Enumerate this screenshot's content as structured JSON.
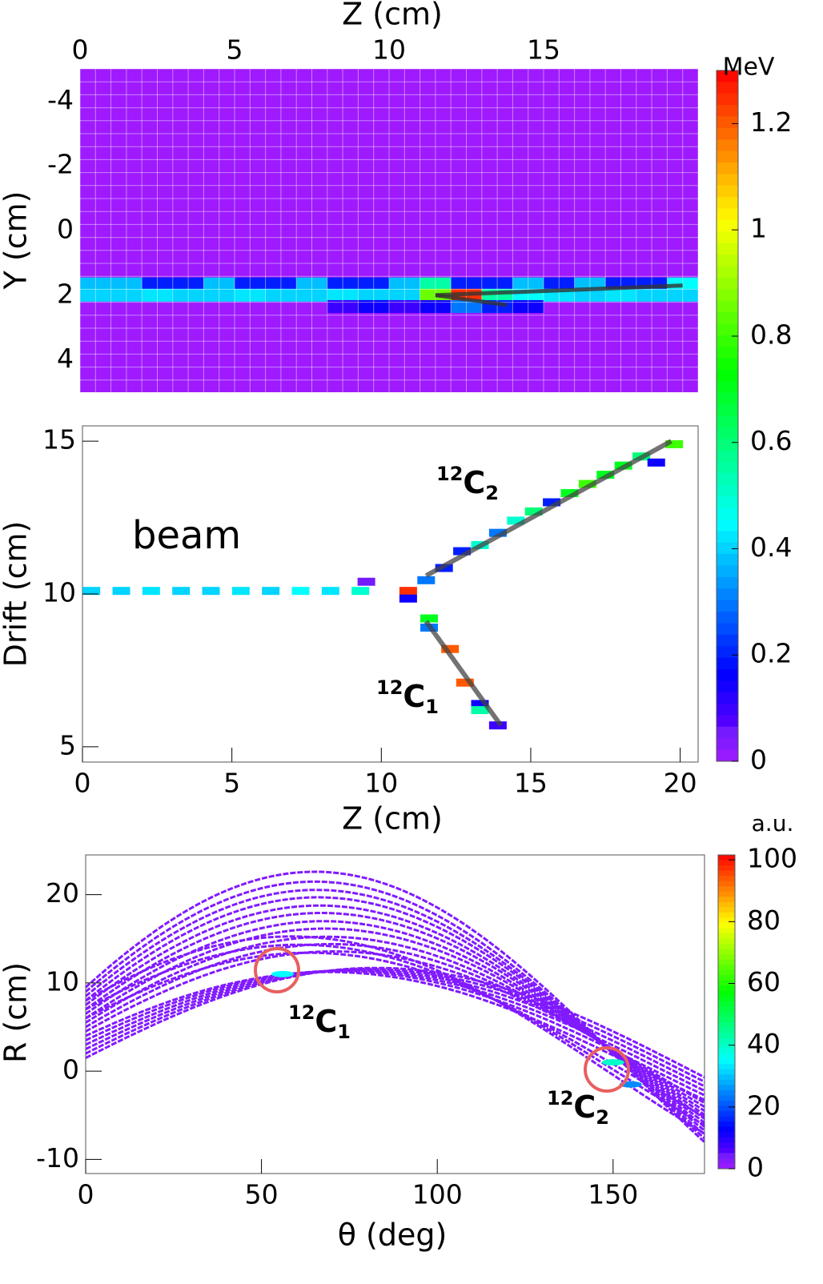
{
  "chart_data": [
    {
      "type": "heatmap",
      "x_label": "Z (cm)",
      "y_label": "Y (cm)",
      "xlim": [
        0,
        20
      ],
      "ylim": [
        -5,
        5
      ],
      "xticks": [
        0,
        5,
        10,
        15
      ],
      "yticks": [
        -4,
        -2,
        0,
        2,
        4
      ],
      "hit_rows": [
        {
          "y": 1.65,
          "z": [
            0,
            1,
            2,
            3,
            4,
            5,
            6,
            7,
            8,
            9,
            10,
            11,
            12,
            13,
            14,
            15,
            16,
            17,
            18,
            19
          ],
          "values": [
            0.38,
            0.38,
            0.2,
            0.2,
            0.38,
            0.2,
            0.2,
            0.38,
            0.2,
            0.2,
            0.38,
            0.55,
            0.2,
            0.2,
            0.38,
            0.2,
            0.38,
            0.2,
            0.2,
            0.45
          ]
        },
        {
          "y": 2.0,
          "z": [
            0,
            1,
            2,
            3,
            4,
            5,
            6,
            7,
            8,
            9,
            10,
            11,
            12,
            13,
            14,
            15,
            16,
            17,
            18,
            19
          ],
          "values": [
            0.4,
            0.4,
            0.42,
            0.4,
            0.4,
            0.42,
            0.4,
            0.4,
            0.42,
            0.4,
            0.4,
            0.85,
            1.25,
            0.55,
            0.45,
            0.42,
            0.4,
            0.42,
            0.4,
            0.4
          ]
        },
        {
          "y": 2.35,
          "z": [
            8,
            9,
            10,
            11,
            12,
            13,
            14
          ],
          "values": [
            0.1,
            0.15,
            0.1,
            0.15,
            0.3,
            0.2,
            0.15
          ]
        }
      ],
      "fit_lines": [
        {
          "z": [
            11.5,
            19.5
          ],
          "y": [
            2.0,
            1.7
          ]
        },
        {
          "z": [
            11.5,
            13.8
          ],
          "y": [
            2.0,
            2.3
          ]
        }
      ]
    },
    {
      "type": "scatter",
      "x_label": "Z (cm)",
      "y_label": "Drift (cm)",
      "xlim": [
        0,
        20.6
      ],
      "ylim": [
        4.5,
        15.5
      ],
      "xticks": [
        0,
        5,
        10,
        15,
        20
      ],
      "yticks": [
        5,
        10,
        15
      ],
      "annotations": [
        {
          "text": "beam"
        },
        {
          "mass": "12",
          "symbol": "C",
          "index": "2"
        },
        {
          "mass": "12",
          "symbol": "C",
          "index": "1"
        }
      ],
      "hits": {
        "z": [
          0.3,
          1.3,
          2.3,
          3.3,
          4.3,
          5.3,
          6.3,
          7.3,
          8.3,
          9.3,
          9.5,
          10.9,
          10.9,
          11.5,
          12.1,
          12.7,
          13.3,
          13.9,
          14.5,
          15.1,
          15.7,
          16.3,
          16.9,
          17.5,
          18.1,
          18.7,
          19.2,
          19.8,
          11.6,
          11.6,
          12.3,
          12.8,
          13.3,
          13.3,
          13.9
        ],
        "drift": [
          10.1,
          10.1,
          10.1,
          10.1,
          10.1,
          10.1,
          10.1,
          10.1,
          10.1,
          10.1,
          10.4,
          10.1,
          9.85,
          10.45,
          10.85,
          11.4,
          11.6,
          12.0,
          12.4,
          12.7,
          13.0,
          13.3,
          13.6,
          13.9,
          14.2,
          14.5,
          14.3,
          14.9,
          9.2,
          8.9,
          8.2,
          7.1,
          6.4,
          6.2,
          5.7
        ],
        "values": [
          0.4,
          0.4,
          0.42,
          0.4,
          0.4,
          0.42,
          0.4,
          0.45,
          0.42,
          0.5,
          0.05,
          1.25,
          0.15,
          0.3,
          0.2,
          0.2,
          0.5,
          0.3,
          0.5,
          0.6,
          0.2,
          0.7,
          0.8,
          0.7,
          0.7,
          0.6,
          0.15,
          0.8,
          0.7,
          0.3,
          1.2,
          1.2,
          0.15,
          0.55,
          0.1
        ]
      },
      "fit_lines": [
        {
          "z": [
            11.5,
            19.7
          ],
          "drift": [
            10.6,
            15.0
          ]
        },
        {
          "z": [
            11.5,
            14.0
          ],
          "drift": [
            9.1,
            5.7
          ]
        }
      ]
    },
    {
      "type": "colorbar",
      "label": "MeV",
      "clim": [
        0,
        1.3
      ],
      "ticks": [
        0,
        0.2,
        0.4,
        0.6,
        0.8,
        1,
        1.2
      ]
    },
    {
      "type": "hough",
      "x_label": "θ (deg)",
      "y_label": "R (cm)",
      "xlim": [
        0,
        176
      ],
      "ylim": [
        -11.6,
        24.5
      ],
      "xticks": [
        0,
        50,
        100,
        150
      ],
      "yticks": [
        -10,
        0,
        10,
        20
      ],
      "curves": {
        "a": [
          9.5,
          9,
          8.5,
          8,
          7.5,
          7,
          6.5,
          6,
          5.5,
          5,
          4.5,
          8,
          7,
          6,
          4,
          3.5,
          3,
          2.5,
          2,
          1.5
        ],
        "b": [
          20.5,
          19.5,
          18.7,
          18,
          17.2,
          16.5,
          15.7,
          15,
          14.2,
          13.5,
          12.8,
          13,
          12.5,
          12,
          10.5,
          10.8,
          11,
          11.2,
          11.4,
          11.6
        ]
      },
      "hotspots": {
        "theta": [
          56,
          150,
          155
        ],
        "r": [
          11,
          1,
          -1.5
        ],
        "values": [
          35,
          40,
          25
        ]
      },
      "annotations": [
        {
          "mass": "12",
          "symbol": "C",
          "index": "1"
        },
        {
          "mass": "12",
          "symbol": "C",
          "index": "2"
        }
      ]
    },
    {
      "type": "colorbar",
      "label": "a.u.",
      "clim": [
        0,
        101.6
      ],
      "ticks": [
        0,
        20,
        40,
        60,
        80,
        100
      ]
    }
  ]
}
